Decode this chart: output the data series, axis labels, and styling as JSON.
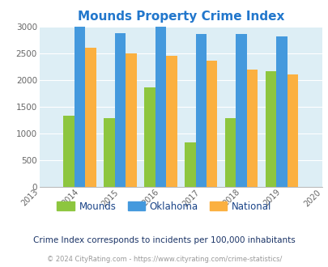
{
  "title": "Mounds Property Crime Index",
  "all_years": [
    2013,
    2014,
    2015,
    2016,
    2017,
    2018,
    2019,
    2020
  ],
  "data_years": [
    2014,
    2015,
    2016,
    2017,
    2018,
    2019
  ],
  "mounds": [
    1340,
    1290,
    1860,
    830,
    1290,
    2160
  ],
  "oklahoma": [
    3000,
    2880,
    3000,
    2860,
    2860,
    2820
  ],
  "national": [
    2600,
    2500,
    2460,
    2360,
    2200,
    2100
  ],
  "mounds_color": "#8dc63f",
  "oklahoma_color": "#4499dd",
  "national_color": "#fbb040",
  "bg_color": "#ffffff",
  "ylim": [
    0,
    3000
  ],
  "yticks": [
    0,
    500,
    1000,
    1500,
    2000,
    2500,
    3000
  ],
  "title_color": "#2277cc",
  "footer_note": "Crime Index corresponds to incidents per 100,000 inhabitants",
  "copyright": "© 2024 CityRating.com - https://www.cityrating.com/crime-statistics/",
  "bar_width": 0.27,
  "axis_bg": "#ddeef5",
  "legend_text_color": "#1a4488",
  "tick_color": "#666666"
}
